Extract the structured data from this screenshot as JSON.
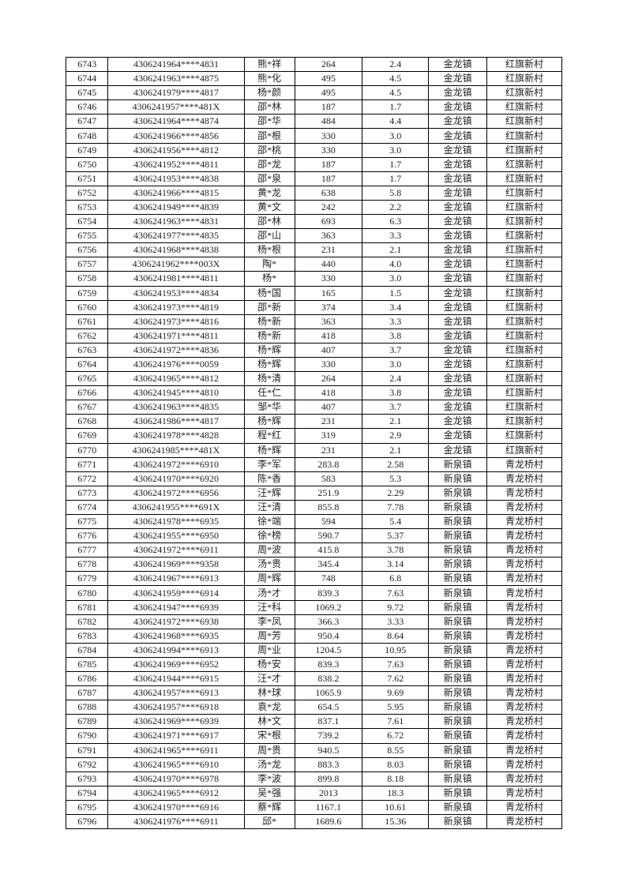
{
  "table": {
    "rows": [
      [
        "6743",
        "4306241964****4831",
        "熊*祥",
        "264",
        "2.4",
        "金龙镇",
        "红旗新村"
      ],
      [
        "6744",
        "4306241963****4875",
        "熊*化",
        "495",
        "4.5",
        "金龙镇",
        "红旗新村"
      ],
      [
        "6745",
        "4306241979****4817",
        "杨*颜",
        "495",
        "4.5",
        "金龙镇",
        "红旗新村"
      ],
      [
        "6746",
        "4306241957****481X",
        "邵*林",
        "187",
        "1.7",
        "金龙镇",
        "红旗新村"
      ],
      [
        "6747",
        "4306241964****4874",
        "邵*华",
        "484",
        "4.4",
        "金龙镇",
        "红旗新村"
      ],
      [
        "6748",
        "4306241966****4856",
        "邵*根",
        "330",
        "3.0",
        "金龙镇",
        "红旗新村"
      ],
      [
        "6749",
        "4306241956****4812",
        "邵*桃",
        "330",
        "3.0",
        "金龙镇",
        "红旗新村"
      ],
      [
        "6750",
        "4306241952****4811",
        "邵*龙",
        "187",
        "1.7",
        "金龙镇",
        "红旗新村"
      ],
      [
        "6751",
        "4306241953****4838",
        "邵*泉",
        "187",
        "1.7",
        "金龙镇",
        "红旗新村"
      ],
      [
        "6752",
        "4306241966****4815",
        "黄*龙",
        "638",
        "5.8",
        "金龙镇",
        "红旗新村"
      ],
      [
        "6753",
        "4306241949****4839",
        "黄*文",
        "242",
        "2.2",
        "金龙镇",
        "红旗新村"
      ],
      [
        "6754",
        "4306241963****4831",
        "邵*林",
        "693",
        "6.3",
        "金龙镇",
        "红旗新村"
      ],
      [
        "6755",
        "4306241977****4835",
        "邵*山",
        "363",
        "3.3",
        "金龙镇",
        "红旗新村"
      ],
      [
        "6756",
        "4306241968****4838",
        "杨*根",
        "231",
        "2.1",
        "金龙镇",
        "红旗新村"
      ],
      [
        "6757",
        "4306241962****003X",
        "陶*",
        "440",
        "4.0",
        "金龙镇",
        "红旗新村"
      ],
      [
        "6758",
        "4306241981****4811",
        "杨*",
        "330",
        "3.0",
        "金龙镇",
        "红旗新村"
      ],
      [
        "6759",
        "4306241953****4834",
        "杨*国",
        "165",
        "1.5",
        "金龙镇",
        "红旗新村"
      ],
      [
        "6760",
        "4306241973****4819",
        "邵*新",
        "374",
        "3.4",
        "金龙镇",
        "红旗新村"
      ],
      [
        "6761",
        "4306241973****4816",
        "杨*新",
        "363",
        "3.3",
        "金龙镇",
        "红旗新村"
      ],
      [
        "6762",
        "4306241971****4811",
        "杨*新",
        "418",
        "3.8",
        "金龙镇",
        "红旗新村"
      ],
      [
        "6763",
        "4306241972****4836",
        "杨*辉",
        "407",
        "3.7",
        "金龙镇",
        "红旗新村"
      ],
      [
        "6764",
        "4306241976****0059",
        "杨*辉",
        "330",
        "3.0",
        "金龙镇",
        "红旗新村"
      ],
      [
        "6765",
        "4306241965****4812",
        "杨*清",
        "264",
        "2.4",
        "金龙镇",
        "红旗新村"
      ],
      [
        "6766",
        "4306241945****4810",
        "任*仁",
        "418",
        "3.8",
        "金龙镇",
        "红旗新村"
      ],
      [
        "6767",
        "4306241963****4835",
        "邹*华",
        "407",
        "3.7",
        "金龙镇",
        "红旗新村"
      ],
      [
        "6768",
        "4306241986****4817",
        "杨*辉",
        "231",
        "2.1",
        "金龙镇",
        "红旗新村"
      ],
      [
        "6769",
        "4306241978****4828",
        "程*红",
        "319",
        "2.9",
        "金龙镇",
        "红旗新村"
      ],
      [
        "6770",
        "4306241985****481X",
        "杨*辉",
        "231",
        "2.1",
        "金龙镇",
        "红旗新村"
      ],
      [
        "6771",
        "4306241972****6910",
        "李*军",
        "283.8",
        "2.58",
        "新泉镇",
        "青龙桥村"
      ],
      [
        "6772",
        "4306241970****6920",
        "陈*香",
        "583",
        "5.3",
        "新泉镇",
        "青龙桥村"
      ],
      [
        "6773",
        "4306241972****6956",
        "汪*辉",
        "251.9",
        "2.29",
        "新泉镇",
        "青龙桥村"
      ],
      [
        "6774",
        "4306241955****691X",
        "汪*清",
        "855.8",
        "7.78",
        "新泉镇",
        "青龙桥村"
      ],
      [
        "6775",
        "4306241978****6935",
        "徐*端",
        "594",
        "5.4",
        "新泉镇",
        "青龙桥村"
      ],
      [
        "6776",
        "4306241955****6950",
        "徐*榜",
        "590.7",
        "5.37",
        "新泉镇",
        "青龙桥村"
      ],
      [
        "6777",
        "4306241972****6911",
        "周*波",
        "415.8",
        "3.78",
        "新泉镇",
        "青龙桥村"
      ],
      [
        "6778",
        "4306241969****9358",
        "汤*贵",
        "345.4",
        "3.14",
        "新泉镇",
        "青龙桥村"
      ],
      [
        "6779",
        "4306241967****6913",
        "周*辉",
        "748",
        "6.8",
        "新泉镇",
        "青龙桥村"
      ],
      [
        "6780",
        "4306241959****6914",
        "汤*才",
        "839.3",
        "7.63",
        "新泉镇",
        "青龙桥村"
      ],
      [
        "6781",
        "4306241947****6939",
        "汪*科",
        "1069.2",
        "9.72",
        "新泉镇",
        "青龙桥村"
      ],
      [
        "6782",
        "4306241972****6938",
        "李*凤",
        "366.3",
        "3.33",
        "新泉镇",
        "青龙桥村"
      ],
      [
        "6783",
        "4306241968****6935",
        "周*芳",
        "950.4",
        "8.64",
        "新泉镇",
        "青龙桥村"
      ],
      [
        "6784",
        "4306241994****6913",
        "周*业",
        "1204.5",
        "10.95",
        "新泉镇",
        "青龙桥村"
      ],
      [
        "6785",
        "4306241969****6952",
        "杨*安",
        "839.3",
        "7.63",
        "新泉镇",
        "青龙桥村"
      ],
      [
        "6786",
        "4306241944****6915",
        "汪*才",
        "838.2",
        "7.62",
        "新泉镇",
        "青龙桥村"
      ],
      [
        "6787",
        "4306241957****6913",
        "林*球",
        "1065.9",
        "9.69",
        "新泉镇",
        "青龙桥村"
      ],
      [
        "6788",
        "4306241957****6918",
        "袁*龙",
        "654.5",
        "5.95",
        "新泉镇",
        "青龙桥村"
      ],
      [
        "6789",
        "4306241969****6939",
        "林*文",
        "837.1",
        "7.61",
        "新泉镇",
        "青龙桥村"
      ],
      [
        "6790",
        "4306241971****6917",
        "宋*根",
        "739.2",
        "6.72",
        "新泉镇",
        "青龙桥村"
      ],
      [
        "6791",
        "4306241965****6911",
        "周*贵",
        "940.5",
        "8.55",
        "新泉镇",
        "青龙桥村"
      ],
      [
        "6792",
        "4306241965****6910",
        "汤*龙",
        "883.3",
        "8.03",
        "新泉镇",
        "青龙桥村"
      ],
      [
        "6793",
        "4306241970****6978",
        "李*波",
        "899.8",
        "8.18",
        "新泉镇",
        "青龙桥村"
      ],
      [
        "6794",
        "4306241965****6912",
        "吴*强",
        "2013",
        "18.3",
        "新泉镇",
        "青龙桥村"
      ],
      [
        "6795",
        "4306241970****6916",
        "蔡*辉",
        "1167.1",
        "10.61",
        "新泉镇",
        "青龙桥村"
      ],
      [
        "6796",
        "4306241976****6911",
        "邱*",
        "1689.6",
        "15.36",
        "新泉镇",
        "青龙桥村"
      ]
    ]
  }
}
